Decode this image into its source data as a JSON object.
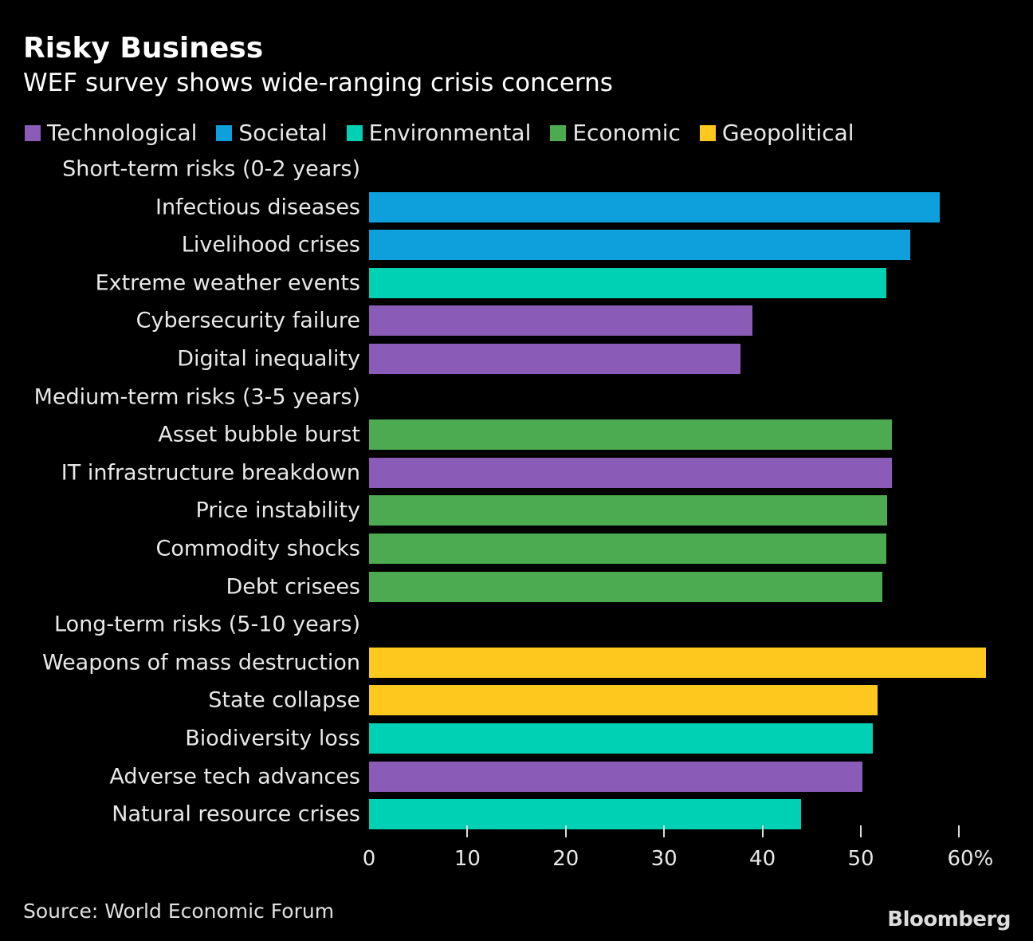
{
  "header": {
    "title": "Risky Business",
    "subtitle": "WEF survey shows wide-ranging crisis concerns"
  },
  "legend": [
    {
      "label": "Technological",
      "color": "#8a5cb8"
    },
    {
      "label": "Societal",
      "color": "#0ea0dc"
    },
    {
      "label": "Environmental",
      "color": "#00d0b4"
    },
    {
      "label": "Economic",
      "color": "#4caa50"
    },
    {
      "label": "Geopolitical",
      "color": "#ffc81e"
    }
  ],
  "chart_data": {
    "type": "bar",
    "orientation": "horizontal",
    "xlim": [
      0,
      62
    ],
    "x_ticks": [
      "0",
      "10",
      "20",
      "30",
      "40",
      "50",
      "60%"
    ],
    "x_tick_values": [
      0,
      10,
      20,
      30,
      40,
      50,
      60
    ],
    "grid": false,
    "legend_position": "top",
    "groups": [
      {
        "label": "Short-term risks (0-2 years)",
        "items": [
          {
            "label": "Infectious diseases",
            "value": 58,
            "category": "Societal"
          },
          {
            "label": "Livelihood crises",
            "value": 55,
            "category": "Societal"
          },
          {
            "label": "Extreme weather events",
            "value": 52.6,
            "category": "Environmental"
          },
          {
            "label": "Cybersecurity failure",
            "value": 39,
            "category": "Technological"
          },
          {
            "label": "Digital inequality",
            "value": 37.8,
            "category": "Technological"
          }
        ]
      },
      {
        "label": "Medium-term risks (3-5 years)",
        "items": [
          {
            "label": "Asset bubble burst",
            "value": 53.2,
            "category": "Economic"
          },
          {
            "label": "IT infrastructure breakdown",
            "value": 53.2,
            "category": "Technological"
          },
          {
            "label": "Price instability",
            "value": 52.7,
            "category": "Economic"
          },
          {
            "label": "Commodity shocks",
            "value": 52.6,
            "category": "Economic"
          },
          {
            "label": "Debt crisees",
            "value": 52.2,
            "category": "Economic"
          }
        ]
      },
      {
        "label": "Long-term risks (5-10 years)",
        "items": [
          {
            "label": "Weapons of mass destruction",
            "value": 62.7,
            "category": "Geopolitical"
          },
          {
            "label": "State collapse",
            "value": 51.7,
            "category": "Geopolitical"
          },
          {
            "label": "Biodiversity loss",
            "value": 51.2,
            "category": "Environmental"
          },
          {
            "label": "Adverse tech advances",
            "value": 50.2,
            "category": "Technological"
          },
          {
            "label": "Natural resource crises",
            "value": 43.9,
            "category": "Environmental"
          }
        ]
      }
    ]
  },
  "footer": {
    "source": "Source: World Economic Forum",
    "logo": "Bloomberg"
  }
}
